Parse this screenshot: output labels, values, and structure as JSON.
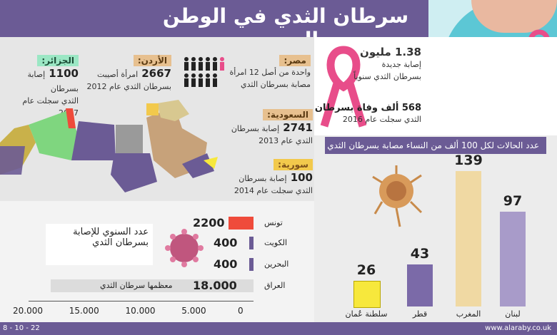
{
  "header": {
    "title": "سرطان الثدي في الوطن العربي"
  },
  "global": {
    "cases": "1.38 مليون",
    "cases_l1": "إصابة جديدة",
    "cases_l2": "بسرطان الثدي سنوياً",
    "deaths": "568 ألف وفاة بسرطان",
    "deaths_l2": "الثدي سجلت عام 2016"
  },
  "countries": {
    "algeria": {
      "name": "الجزائر:",
      "num": "1100",
      "l1": "إصابة بسرطان",
      "l2": "الثدي سجلت عام 2017"
    },
    "jordan": {
      "name": "الأردن:",
      "num": "2667",
      "l1": "امرأة أصيبت",
      "l2": "بسرطان الثدي عام 2012"
    },
    "egypt": {
      "name": "مصر:",
      "l1": "واحدة من أصل 12 امرأة",
      "l2": "مصابة بسرطان الثدي"
    },
    "saudi": {
      "name": "السعودية:",
      "num": "2741",
      "l1": "إصابة بسرطان",
      "l2": "الثدي عام 2013"
    },
    "syria": {
      "name": "سورية:",
      "num": "100",
      "l1": "إصابة بسرطان",
      "l2": "الثدي سجلت عام 2014"
    }
  },
  "rate_chart": {
    "title": "عدد الحالات لكل 100 ألف من النساء مصابة بسرطان الثدي",
    "bars": [
      {
        "name": "لبنان",
        "value": 97,
        "color": "#a89bc9"
      },
      {
        "name": "المغرب",
        "value": 139,
        "color": "#f0d9a3"
      },
      {
        "name": "قطر",
        "value": 43,
        "color": "#7b6aa8"
      },
      {
        "name": "سلطنة عُمان",
        "value": 26,
        "color": "#f7e83c"
      }
    ]
  },
  "annual_chart": {
    "title_l1": "عدد السنوي للإصابة",
    "title_l2": "بسرطان الثدي",
    "rows": [
      {
        "name": "تونس",
        "value": "2200",
        "num": 2200,
        "color": "#ef4b3b"
      },
      {
        "name": "الكويت",
        "value": "400",
        "num": 400,
        "color": "#6b5b95"
      },
      {
        "name": "البحرين",
        "value": "400",
        "num": 400,
        "color": "#6b5b95"
      },
      {
        "name": "العراق",
        "value": "18.000",
        "num": 18000,
        "color": "#dcdcdc",
        "note": "معظمها سرطان الثدي"
      }
    ],
    "ticks": [
      "20.000",
      "15.000",
      "10.000",
      "5.000",
      "0"
    ]
  },
  "footer": {
    "date": "8 - 10 - 22",
    "site": "www.alaraby.co.uk"
  }
}
